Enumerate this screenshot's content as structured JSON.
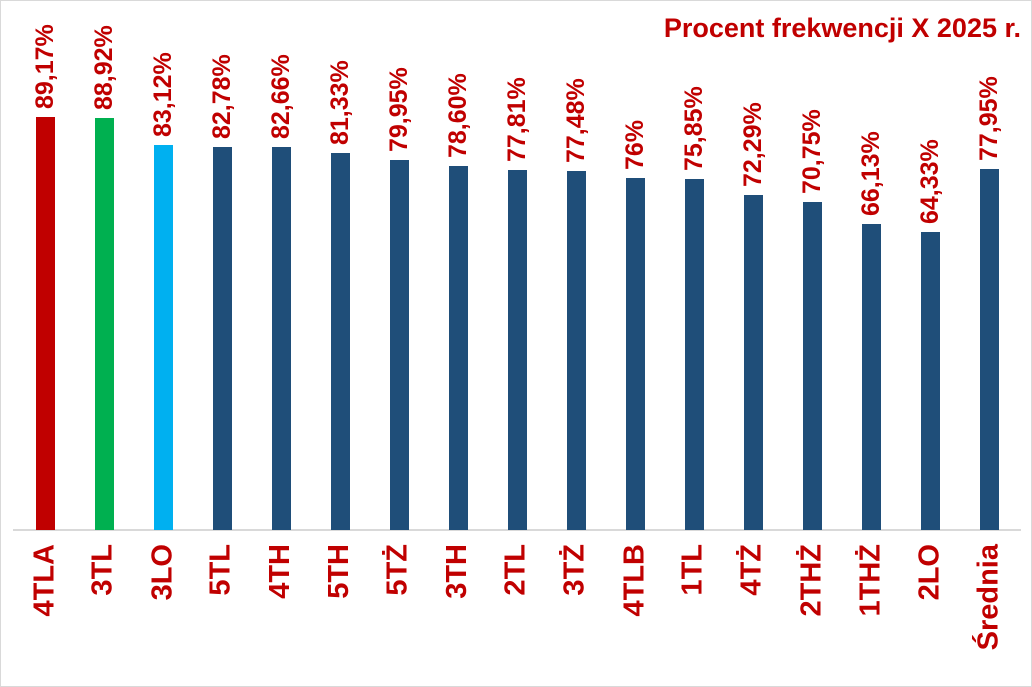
{
  "chart_data": {
    "type": "bar",
    "title": "Procent frekwencji X 2025 r.",
    "categories": [
      "4TLA",
      "3TL",
      "3LO",
      "5TL",
      "4TH",
      "5TH",
      "5TŻ",
      "3TH",
      "2TL",
      "3TŻ",
      "4TLB",
      "1TL",
      "4TŻ",
      "2THŻ",
      "1THŻ",
      "2LO",
      "Średnia"
    ],
    "values": [
      89.17,
      88.92,
      83.12,
      82.78,
      82.66,
      81.33,
      79.95,
      78.6,
      77.81,
      77.48,
      76,
      75.85,
      72.29,
      70.75,
      66.13,
      64.33,
      77.95
    ],
    "value_labels": [
      "89,17%",
      "88,92%",
      "83,12%",
      "82,78%",
      "82,66%",
      "81,33%",
      "79,95%",
      "78,60%",
      "77,81%",
      "77,48%",
      "76%",
      "75,85%",
      "72,29%",
      "70,75%",
      "66,13%",
      "64,33%",
      "77,95%"
    ],
    "bar_colors": [
      "#C00000",
      "#00B050",
      "#00B0F0",
      "#1F4E79",
      "#1F4E79",
      "#1F4E79",
      "#1F4E79",
      "#1F4E79",
      "#1F4E79",
      "#1F4E79",
      "#1F4E79",
      "#1F4E79",
      "#1F4E79",
      "#1F4E79",
      "#1F4E79",
      "#1F4E79",
      "#1F4E79"
    ],
    "colors": {
      "title": "#C00000",
      "data_labels": "#C00000",
      "category_labels": "#C00000",
      "axis_line": "#D9D9D9",
      "background": "#FFFFFF",
      "default_bar": "#1F4E79",
      "highlight_red": "#C00000",
      "highlight_green": "#00B050",
      "highlight_blue": "#00B0F0"
    },
    "xlabel": "",
    "ylabel": "",
    "ylim": [
      0,
      100
    ],
    "grid": false,
    "legend": false,
    "label_rotation_deg": -90,
    "title_align": "right"
  }
}
